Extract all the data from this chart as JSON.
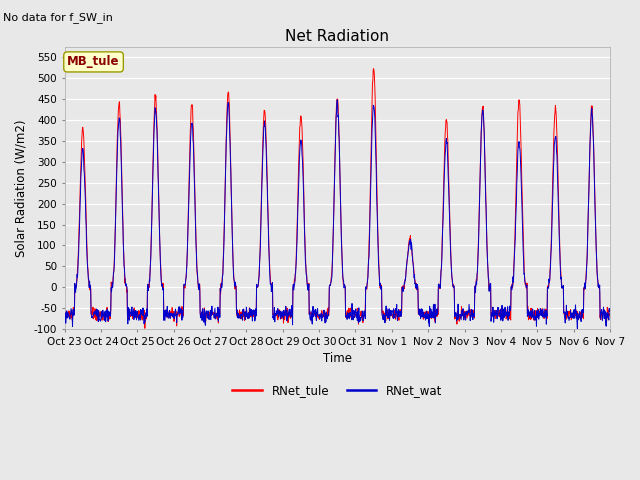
{
  "title": "Net Radiation",
  "subtitle": "No data for f_SW_in",
  "ylabel": "Solar Radiation (W/m2)",
  "xlabel": "Time",
  "ylim": [
    -100,
    575
  ],
  "yticks": [
    -100,
    -50,
    0,
    50,
    100,
    150,
    200,
    250,
    300,
    350,
    400,
    450,
    500,
    550
  ],
  "color_tule": "#FF0000",
  "color_wat": "#0000CC",
  "legend_label_tule": "RNet_tule",
  "legend_label_wat": "RNet_wat",
  "site_label": "MB_tule",
  "xtick_labels": [
    "Oct 23",
    "Oct 24",
    "Oct 25",
    "Oct 26",
    "Oct 27",
    "Oct 28",
    "Oct 29",
    "Oct 30",
    "Oct 31",
    "Nov 1",
    "Nov 2",
    "Nov 3",
    "Nov 4",
    "Nov 5",
    "Nov 6",
    "Nov 7"
  ],
  "n_days": 15,
  "pts_per_day": 96,
  "night_val": -65,
  "night_noise": 8,
  "background_color": "#e8e8e8",
  "plot_bg_color": "#e8e8e8",
  "figsize": [
    6.4,
    4.8
  ],
  "dpi": 100,
  "peak_tule": [
    380,
    440,
    460,
    435,
    465,
    430,
    410,
    455,
    530,
    115,
    400,
    430,
    445,
    430,
    430
  ],
  "peak_wat": [
    325,
    405,
    430,
    395,
    440,
    395,
    355,
    440,
    440,
    110,
    350,
    425,
    350,
    360,
    420
  ],
  "day_start": 0.28,
  "day_end": 0.72,
  "peak_sharpness": 3.5
}
